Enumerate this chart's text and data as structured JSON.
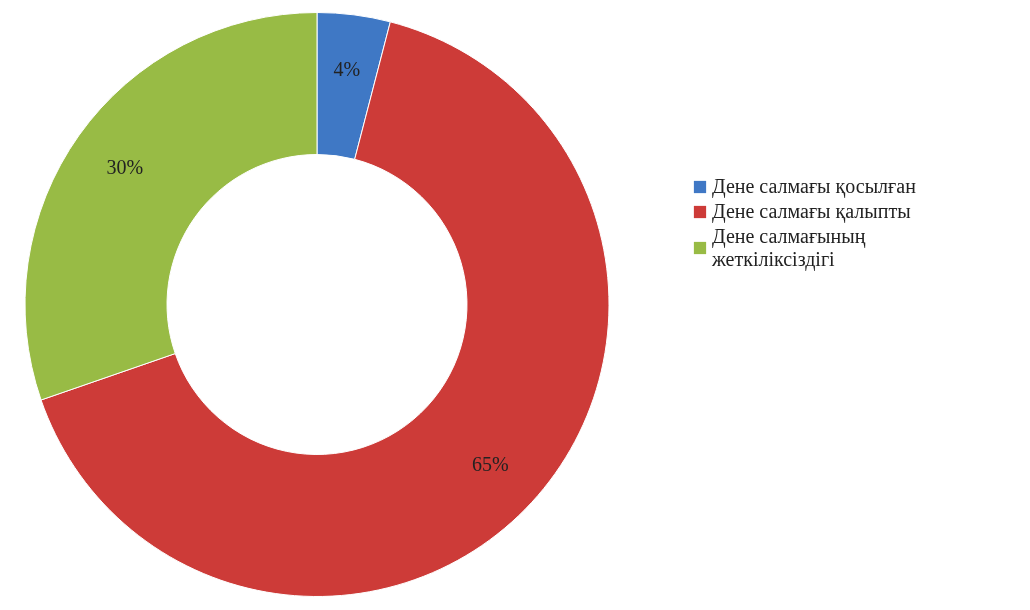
{
  "chart_data": {
    "type": "donut",
    "categories": [
      "Дене салмағы қосылған",
      "Дене салмағы қалыпты",
      "Дене салмағының жеткіліксіздігі"
    ],
    "values": [
      4,
      65,
      30
    ],
    "colors": [
      "#3f78c5",
      "#cd3b38",
      "#98bb45"
    ],
    "value_labels": [
      "4%",
      "65%",
      "30%"
    ],
    "legend": "right"
  }
}
